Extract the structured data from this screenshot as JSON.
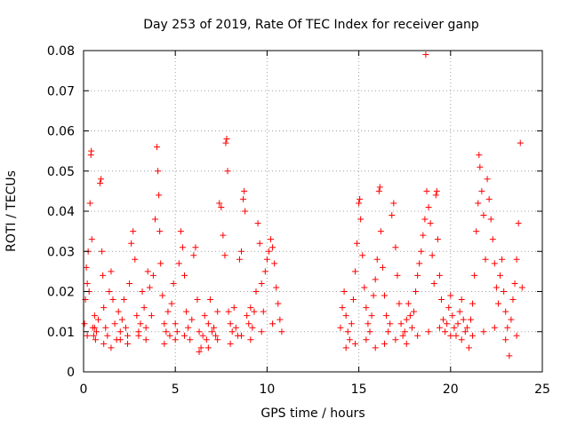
{
  "chart_data": {
    "type": "scatter",
    "title": "Day 253 of 2019, Rate Of TEC Index for receiver ganp",
    "xlabel": "GPS time / hours",
    "ylabel": "ROTI / TECUs",
    "xlim": [
      0,
      25
    ],
    "ylim": [
      0,
      0.08
    ],
    "xticks": [
      0,
      5,
      10,
      15,
      20,
      25
    ],
    "xtick_labels": [
      "0",
      "5",
      "10",
      "15",
      "20",
      "25"
    ],
    "yticks": [
      0,
      0.01,
      0.02,
      0.03,
      0.04,
      0.05,
      0.06,
      0.07,
      0.08
    ],
    "ytick_labels": [
      "0",
      "0.01",
      "0.02",
      "0.03",
      "0.04",
      "0.05",
      "0.06",
      "0.07",
      "0.08"
    ],
    "grid": true,
    "marker": "plus",
    "color": "#ff0000",
    "series": [
      {
        "name": "ROTI",
        "points": [
          [
            0.05,
            0.012
          ],
          [
            0.1,
            0.018
          ],
          [
            0.15,
            0.026
          ],
          [
            0.2,
            0.022
          ],
          [
            0.25,
            0.03
          ],
          [
            0.3,
            0.02
          ],
          [
            0.35,
            0.042
          ],
          [
            0.4,
            0.054
          ],
          [
            0.42,
            0.055
          ],
          [
            0.45,
            0.033
          ],
          [
            0.5,
            0.011
          ],
          [
            0.55,
            0.009
          ],
          [
            0.6,
            0.014
          ],
          [
            0.65,
            0.008
          ],
          [
            0.7,
            0.01
          ],
          [
            0.8,
            0.013
          ],
          [
            0.9,
            0.047
          ],
          [
            0.95,
            0.048
          ],
          [
            1.0,
            0.03
          ],
          [
            1.05,
            0.024
          ],
          [
            1.1,
            0.016
          ],
          [
            1.2,
            0.011
          ],
          [
            1.3,
            0.009
          ],
          [
            1.4,
            0.02
          ],
          [
            1.5,
            0.025
          ],
          [
            1.6,
            0.018
          ],
          [
            1.7,
            0.012
          ],
          [
            1.8,
            0.008
          ],
          [
            1.9,
            0.015
          ],
          [
            2.0,
            0.01
          ],
          [
            2.1,
            0.013
          ],
          [
            2.2,
            0.018
          ],
          [
            2.3,
            0.011
          ],
          [
            2.4,
            0.009
          ],
          [
            2.5,
            0.022
          ],
          [
            2.6,
            0.032
          ],
          [
            2.7,
            0.035
          ],
          [
            2.8,
            0.028
          ],
          [
            2.9,
            0.014
          ],
          [
            3.0,
            0.01
          ],
          [
            3.1,
            0.012
          ],
          [
            3.2,
            0.02
          ],
          [
            3.3,
            0.016
          ],
          [
            3.4,
            0.011
          ],
          [
            3.5,
            0.025
          ],
          [
            3.6,
            0.021
          ],
          [
            3.7,
            0.014
          ],
          [
            3.8,
            0.024
          ],
          [
            3.9,
            0.038
          ],
          [
            4.0,
            0.056
          ],
          [
            4.05,
            0.05
          ],
          [
            4.1,
            0.044
          ],
          [
            4.15,
            0.035
          ],
          [
            4.2,
            0.027
          ],
          [
            4.3,
            0.019
          ],
          [
            4.4,
            0.012
          ],
          [
            4.5,
            0.01
          ],
          [
            4.6,
            0.015
          ],
          [
            4.7,
            0.009
          ],
          [
            4.8,
            0.017
          ],
          [
            4.9,
            0.022
          ],
          [
            5.0,
            0.012
          ],
          [
            5.1,
            0.01
          ],
          [
            5.2,
            0.027
          ],
          [
            5.3,
            0.035
          ],
          [
            5.4,
            0.031
          ],
          [
            5.5,
            0.024
          ],
          [
            5.6,
            0.015
          ],
          [
            5.7,
            0.011
          ],
          [
            5.8,
            0.008
          ],
          [
            5.9,
            0.013
          ],
          [
            6.0,
            0.029
          ],
          [
            6.1,
            0.031
          ],
          [
            6.2,
            0.018
          ],
          [
            6.3,
            0.01
          ],
          [
            6.4,
            0.006
          ],
          [
            6.5,
            0.009
          ],
          [
            6.6,
            0.014
          ],
          [
            6.7,
            0.008
          ],
          [
            6.8,
            0.012
          ],
          [
            6.9,
            0.018
          ],
          [
            7.0,
            0.01
          ],
          [
            7.1,
            0.011
          ],
          [
            7.2,
            0.009
          ],
          [
            7.3,
            0.015
          ],
          [
            7.4,
            0.042
          ],
          [
            7.5,
            0.041
          ],
          [
            7.6,
            0.034
          ],
          [
            7.7,
            0.029
          ],
          [
            7.75,
            0.057
          ],
          [
            7.8,
            0.058
          ],
          [
            7.85,
            0.05
          ],
          [
            7.9,
            0.015
          ],
          [
            8.0,
            0.012
          ],
          [
            8.1,
            0.01
          ],
          [
            8.2,
            0.016
          ],
          [
            8.3,
            0.011
          ],
          [
            8.4,
            0.009
          ],
          [
            8.5,
            0.028
          ],
          [
            8.6,
            0.03
          ],
          [
            8.7,
            0.043
          ],
          [
            8.75,
            0.045
          ],
          [
            8.8,
            0.04
          ],
          [
            8.9,
            0.014
          ],
          [
            9.0,
            0.012
          ],
          [
            9.1,
            0.016
          ],
          [
            9.2,
            0.011
          ],
          [
            9.3,
            0.015
          ],
          [
            9.4,
            0.02
          ],
          [
            9.5,
            0.037
          ],
          [
            9.6,
            0.032
          ],
          [
            9.7,
            0.022
          ],
          [
            9.8,
            0.015
          ],
          [
            9.9,
            0.025
          ],
          [
            10.0,
            0.028
          ],
          [
            10.1,
            0.03
          ],
          [
            10.2,
            0.033
          ],
          [
            10.3,
            0.031
          ],
          [
            10.4,
            0.027
          ],
          [
            10.5,
            0.021
          ],
          [
            10.6,
            0.017
          ],
          [
            10.7,
            0.013
          ],
          [
            10.8,
            0.01
          ],
          [
            0.2,
            0.009
          ],
          [
            0.6,
            0.011
          ],
          [
            1.1,
            0.007
          ],
          [
            1.5,
            0.006
          ],
          [
            2.0,
            0.008
          ],
          [
            2.4,
            0.007
          ],
          [
            3.0,
            0.009
          ],
          [
            3.4,
            0.008
          ],
          [
            4.4,
            0.007
          ],
          [
            5.0,
            0.008
          ],
          [
            5.5,
            0.009
          ],
          [
            6.3,
            0.005
          ],
          [
            6.8,
            0.006
          ],
          [
            7.3,
            0.008
          ],
          [
            8.0,
            0.007
          ],
          [
            8.6,
            0.009
          ],
          [
            9.1,
            0.008
          ],
          [
            9.7,
            0.01
          ],
          [
            10.3,
            0.012
          ],
          [
            14.0,
            0.011
          ],
          [
            14.1,
            0.016
          ],
          [
            14.2,
            0.02
          ],
          [
            14.3,
            0.014
          ],
          [
            14.4,
            0.01
          ],
          [
            14.5,
            0.008
          ],
          [
            14.6,
            0.012
          ],
          [
            14.7,
            0.018
          ],
          [
            14.8,
            0.025
          ],
          [
            14.9,
            0.032
          ],
          [
            15.0,
            0.042
          ],
          [
            15.05,
            0.043
          ],
          [
            15.1,
            0.038
          ],
          [
            15.2,
            0.029
          ],
          [
            15.3,
            0.021
          ],
          [
            15.4,
            0.016
          ],
          [
            15.5,
            0.012
          ],
          [
            15.6,
            0.01
          ],
          [
            15.7,
            0.014
          ],
          [
            15.8,
            0.019
          ],
          [
            15.9,
            0.023
          ],
          [
            16.0,
            0.028
          ],
          [
            16.1,
            0.045
          ],
          [
            16.15,
            0.046
          ],
          [
            16.2,
            0.035
          ],
          [
            16.3,
            0.026
          ],
          [
            16.4,
            0.019
          ],
          [
            16.5,
            0.014
          ],
          [
            16.6,
            0.01
          ],
          [
            16.7,
            0.012
          ],
          [
            16.8,
            0.039
          ],
          [
            16.9,
            0.042
          ],
          [
            17.0,
            0.031
          ],
          [
            17.1,
            0.024
          ],
          [
            17.2,
            0.017
          ],
          [
            17.3,
            0.012
          ],
          [
            17.4,
            0.009
          ],
          [
            17.5,
            0.01
          ],
          [
            17.6,
            0.013
          ],
          [
            17.7,
            0.017
          ],
          [
            17.8,
            0.014
          ],
          [
            17.9,
            0.011
          ],
          [
            18.0,
            0.015
          ],
          [
            18.1,
            0.02
          ],
          [
            18.2,
            0.024
          ],
          [
            18.3,
            0.027
          ],
          [
            18.4,
            0.03
          ],
          [
            18.5,
            0.034
          ],
          [
            18.6,
            0.038
          ],
          [
            18.65,
            0.079
          ],
          [
            18.7,
            0.045
          ],
          [
            18.8,
            0.041
          ],
          [
            18.9,
            0.037
          ],
          [
            19.0,
            0.029
          ],
          [
            19.1,
            0.022
          ],
          [
            19.2,
            0.044
          ],
          [
            19.25,
            0.045
          ],
          [
            19.3,
            0.033
          ],
          [
            19.4,
            0.024
          ],
          [
            19.5,
            0.018
          ],
          [
            19.6,
            0.013
          ],
          [
            19.7,
            0.01
          ],
          [
            19.8,
            0.012
          ],
          [
            19.9,
            0.016
          ],
          [
            20.0,
            0.019
          ],
          [
            20.1,
            0.014
          ],
          [
            20.2,
            0.011
          ],
          [
            20.3,
            0.009
          ],
          [
            20.4,
            0.012
          ],
          [
            20.5,
            0.015
          ],
          [
            20.6,
            0.018
          ],
          [
            20.7,
            0.013
          ],
          [
            20.8,
            0.01
          ],
          [
            20.9,
            0.011
          ],
          [
            21.0,
            0.006
          ],
          [
            21.1,
            0.013
          ],
          [
            21.2,
            0.017
          ],
          [
            21.3,
            0.024
          ],
          [
            21.4,
            0.035
          ],
          [
            21.5,
            0.042
          ],
          [
            21.55,
            0.054
          ],
          [
            21.6,
            0.051
          ],
          [
            21.7,
            0.045
          ],
          [
            21.8,
            0.039
          ],
          [
            21.9,
            0.028
          ],
          [
            22.0,
            0.048
          ],
          [
            22.1,
            0.043
          ],
          [
            22.2,
            0.038
          ],
          [
            22.3,
            0.033
          ],
          [
            22.4,
            0.027
          ],
          [
            22.5,
            0.021
          ],
          [
            22.6,
            0.017
          ],
          [
            22.7,
            0.024
          ],
          [
            22.8,
            0.028
          ],
          [
            22.9,
            0.02
          ],
          [
            23.0,
            0.015
          ],
          [
            23.1,
            0.011
          ],
          [
            23.2,
            0.004
          ],
          [
            23.3,
            0.013
          ],
          [
            23.4,
            0.018
          ],
          [
            23.5,
            0.022
          ],
          [
            23.6,
            0.028
          ],
          [
            23.7,
            0.037
          ],
          [
            23.8,
            0.057
          ],
          [
            23.9,
            0.021
          ],
          [
            14.3,
            0.006
          ],
          [
            14.8,
            0.007
          ],
          [
            15.4,
            0.008
          ],
          [
            15.9,
            0.006
          ],
          [
            16.4,
            0.007
          ],
          [
            17.0,
            0.008
          ],
          [
            17.6,
            0.007
          ],
          [
            18.2,
            0.009
          ],
          [
            18.8,
            0.01
          ],
          [
            19.4,
            0.011
          ],
          [
            20.0,
            0.009
          ],
          [
            20.6,
            0.008
          ],
          [
            21.2,
            0.009
          ],
          [
            21.8,
            0.01
          ],
          [
            22.4,
            0.011
          ],
          [
            23.0,
            0.008
          ],
          [
            23.6,
            0.009
          ]
        ]
      }
    ]
  }
}
